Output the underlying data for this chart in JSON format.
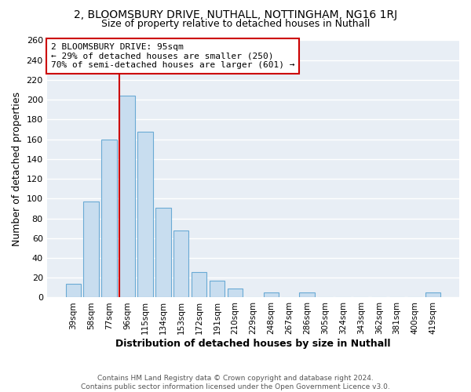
{
  "title": "2, BLOOMSBURY DRIVE, NUTHALL, NOTTINGHAM, NG16 1RJ",
  "subtitle": "Size of property relative to detached houses in Nuthall",
  "xlabel": "Distribution of detached houses by size in Nuthall",
  "ylabel": "Number of detached properties",
  "bar_labels": [
    "39sqm",
    "58sqm",
    "77sqm",
    "96sqm",
    "115sqm",
    "134sqm",
    "153sqm",
    "172sqm",
    "191sqm",
    "210sqm",
    "229sqm",
    "248sqm",
    "267sqm",
    "286sqm",
    "305sqm",
    "324sqm",
    "343sqm",
    "362sqm",
    "381sqm",
    "400sqm",
    "419sqm"
  ],
  "bar_values": [
    14,
    97,
    160,
    204,
    168,
    91,
    68,
    26,
    17,
    9,
    0,
    5,
    0,
    5,
    0,
    0,
    0,
    0,
    0,
    0,
    5
  ],
  "bar_color": "#c8ddef",
  "bar_edge_color": "#6aaad4",
  "highlight_bar_index": 3,
  "highlight_line_color": "#cc0000",
  "annotation_title": "2 BLOOMSBURY DRIVE: 95sqm",
  "annotation_line1": "← 29% of detached houses are smaller (250)",
  "annotation_line2": "70% of semi-detached houses are larger (601) →",
  "annotation_box_color": "#ffffff",
  "annotation_box_edge": "#cc0000",
  "ylim": [
    0,
    260
  ],
  "yticks": [
    0,
    20,
    40,
    60,
    80,
    100,
    120,
    140,
    160,
    180,
    200,
    220,
    240,
    260
  ],
  "footer1": "Contains HM Land Registry data © Crown copyright and database right 2024.",
  "footer2": "Contains public sector information licensed under the Open Government Licence v3.0.",
  "background_color": "#ffffff",
  "plot_background": "#e8eef5",
  "grid_color": "#ffffff",
  "title_fontsize": 10,
  "subtitle_fontsize": 9
}
